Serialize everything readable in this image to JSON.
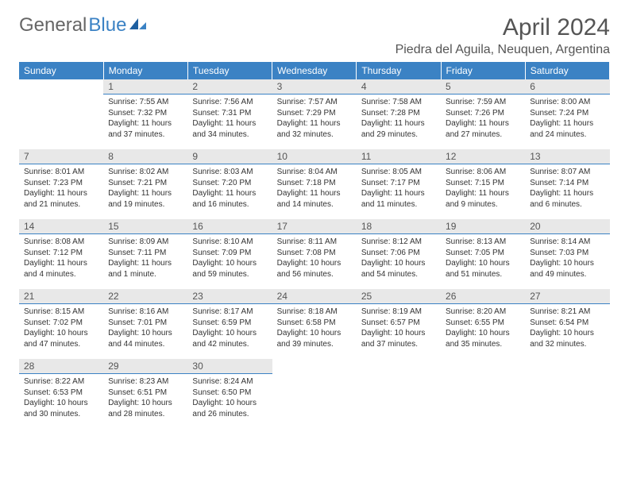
{
  "brand": {
    "part1": "General",
    "part2": "Blue"
  },
  "title": "April 2024",
  "location": "Piedra del Aguila, Neuquen, Argentina",
  "colors": {
    "header_bg": "#3b82c4",
    "header_text": "#ffffff",
    "daynum_bg": "#e8e8e8",
    "daynum_border": "#3b82c4",
    "text": "#333333",
    "muted": "#555555"
  },
  "weekdays": [
    "Sunday",
    "Monday",
    "Tuesday",
    "Wednesday",
    "Thursday",
    "Friday",
    "Saturday"
  ],
  "weeks": [
    [
      {
        "n": "",
        "sr": "",
        "ss": "",
        "dl": ""
      },
      {
        "n": "1",
        "sr": "Sunrise: 7:55 AM",
        "ss": "Sunset: 7:32 PM",
        "dl": "Daylight: 11 hours and 37 minutes."
      },
      {
        "n": "2",
        "sr": "Sunrise: 7:56 AM",
        "ss": "Sunset: 7:31 PM",
        "dl": "Daylight: 11 hours and 34 minutes."
      },
      {
        "n": "3",
        "sr": "Sunrise: 7:57 AM",
        "ss": "Sunset: 7:29 PM",
        "dl": "Daylight: 11 hours and 32 minutes."
      },
      {
        "n": "4",
        "sr": "Sunrise: 7:58 AM",
        "ss": "Sunset: 7:28 PM",
        "dl": "Daylight: 11 hours and 29 minutes."
      },
      {
        "n": "5",
        "sr": "Sunrise: 7:59 AM",
        "ss": "Sunset: 7:26 PM",
        "dl": "Daylight: 11 hours and 27 minutes."
      },
      {
        "n": "6",
        "sr": "Sunrise: 8:00 AM",
        "ss": "Sunset: 7:24 PM",
        "dl": "Daylight: 11 hours and 24 minutes."
      }
    ],
    [
      {
        "n": "7",
        "sr": "Sunrise: 8:01 AM",
        "ss": "Sunset: 7:23 PM",
        "dl": "Daylight: 11 hours and 21 minutes."
      },
      {
        "n": "8",
        "sr": "Sunrise: 8:02 AM",
        "ss": "Sunset: 7:21 PM",
        "dl": "Daylight: 11 hours and 19 minutes."
      },
      {
        "n": "9",
        "sr": "Sunrise: 8:03 AM",
        "ss": "Sunset: 7:20 PM",
        "dl": "Daylight: 11 hours and 16 minutes."
      },
      {
        "n": "10",
        "sr": "Sunrise: 8:04 AM",
        "ss": "Sunset: 7:18 PM",
        "dl": "Daylight: 11 hours and 14 minutes."
      },
      {
        "n": "11",
        "sr": "Sunrise: 8:05 AM",
        "ss": "Sunset: 7:17 PM",
        "dl": "Daylight: 11 hours and 11 minutes."
      },
      {
        "n": "12",
        "sr": "Sunrise: 8:06 AM",
        "ss": "Sunset: 7:15 PM",
        "dl": "Daylight: 11 hours and 9 minutes."
      },
      {
        "n": "13",
        "sr": "Sunrise: 8:07 AM",
        "ss": "Sunset: 7:14 PM",
        "dl": "Daylight: 11 hours and 6 minutes."
      }
    ],
    [
      {
        "n": "14",
        "sr": "Sunrise: 8:08 AM",
        "ss": "Sunset: 7:12 PM",
        "dl": "Daylight: 11 hours and 4 minutes."
      },
      {
        "n": "15",
        "sr": "Sunrise: 8:09 AM",
        "ss": "Sunset: 7:11 PM",
        "dl": "Daylight: 11 hours and 1 minute."
      },
      {
        "n": "16",
        "sr": "Sunrise: 8:10 AM",
        "ss": "Sunset: 7:09 PM",
        "dl": "Daylight: 10 hours and 59 minutes."
      },
      {
        "n": "17",
        "sr": "Sunrise: 8:11 AM",
        "ss": "Sunset: 7:08 PM",
        "dl": "Daylight: 10 hours and 56 minutes."
      },
      {
        "n": "18",
        "sr": "Sunrise: 8:12 AM",
        "ss": "Sunset: 7:06 PM",
        "dl": "Daylight: 10 hours and 54 minutes."
      },
      {
        "n": "19",
        "sr": "Sunrise: 8:13 AM",
        "ss": "Sunset: 7:05 PM",
        "dl": "Daylight: 10 hours and 51 minutes."
      },
      {
        "n": "20",
        "sr": "Sunrise: 8:14 AM",
        "ss": "Sunset: 7:03 PM",
        "dl": "Daylight: 10 hours and 49 minutes."
      }
    ],
    [
      {
        "n": "21",
        "sr": "Sunrise: 8:15 AM",
        "ss": "Sunset: 7:02 PM",
        "dl": "Daylight: 10 hours and 47 minutes."
      },
      {
        "n": "22",
        "sr": "Sunrise: 8:16 AM",
        "ss": "Sunset: 7:01 PM",
        "dl": "Daylight: 10 hours and 44 minutes."
      },
      {
        "n": "23",
        "sr": "Sunrise: 8:17 AM",
        "ss": "Sunset: 6:59 PM",
        "dl": "Daylight: 10 hours and 42 minutes."
      },
      {
        "n": "24",
        "sr": "Sunrise: 8:18 AM",
        "ss": "Sunset: 6:58 PM",
        "dl": "Daylight: 10 hours and 39 minutes."
      },
      {
        "n": "25",
        "sr": "Sunrise: 8:19 AM",
        "ss": "Sunset: 6:57 PM",
        "dl": "Daylight: 10 hours and 37 minutes."
      },
      {
        "n": "26",
        "sr": "Sunrise: 8:20 AM",
        "ss": "Sunset: 6:55 PM",
        "dl": "Daylight: 10 hours and 35 minutes."
      },
      {
        "n": "27",
        "sr": "Sunrise: 8:21 AM",
        "ss": "Sunset: 6:54 PM",
        "dl": "Daylight: 10 hours and 32 minutes."
      }
    ],
    [
      {
        "n": "28",
        "sr": "Sunrise: 8:22 AM",
        "ss": "Sunset: 6:53 PM",
        "dl": "Daylight: 10 hours and 30 minutes."
      },
      {
        "n": "29",
        "sr": "Sunrise: 8:23 AM",
        "ss": "Sunset: 6:51 PM",
        "dl": "Daylight: 10 hours and 28 minutes."
      },
      {
        "n": "30",
        "sr": "Sunrise: 8:24 AM",
        "ss": "Sunset: 6:50 PM",
        "dl": "Daylight: 10 hours and 26 minutes."
      },
      {
        "n": "",
        "sr": "",
        "ss": "",
        "dl": ""
      },
      {
        "n": "",
        "sr": "",
        "ss": "",
        "dl": ""
      },
      {
        "n": "",
        "sr": "",
        "ss": "",
        "dl": ""
      },
      {
        "n": "",
        "sr": "",
        "ss": "",
        "dl": ""
      }
    ]
  ]
}
